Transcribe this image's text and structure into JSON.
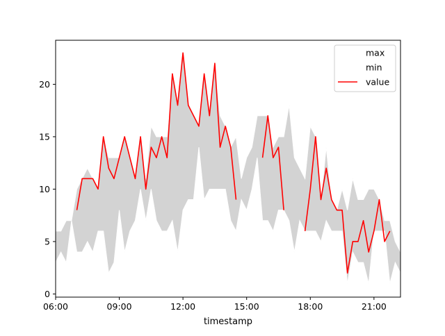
{
  "chart_data": {
    "type": "line",
    "title": "",
    "xlabel": "timestamp",
    "ylabel": "",
    "x_unit": "time of day (hours)",
    "xlim": [
      6,
      22.25
    ],
    "ylim": [
      -0.3,
      24.2
    ],
    "x_ticks": [
      {
        "value": 6,
        "label": "06:00"
      },
      {
        "value": 9,
        "label": "09:00"
      },
      {
        "value": 12,
        "label": "12:00"
      },
      {
        "value": 15,
        "label": "15:00"
      },
      {
        "value": 18,
        "label": "18:00"
      },
      {
        "value": 21,
        "label": "21:00"
      }
    ],
    "y_ticks": [
      0,
      5,
      10,
      15,
      20
    ],
    "grid": false,
    "legend": {
      "position": "top-right",
      "entries": [
        {
          "label": "max",
          "color": "#ffffff"
        },
        {
          "label": "min",
          "color": "#ffffff"
        },
        {
          "label": "value",
          "color": "#ff0000"
        }
      ]
    },
    "band": {
      "fill": "#d3d3d3",
      "max": [
        [
          6,
          6
        ],
        [
          6.25,
          6
        ],
        [
          6.5,
          7
        ],
        [
          6.75,
          7
        ],
        [
          7,
          10
        ],
        [
          7.25,
          11
        ],
        [
          7.5,
          12
        ],
        [
          7.75,
          11
        ],
        [
          8,
          10
        ],
        [
          8.25,
          15
        ],
        [
          8.5,
          13
        ],
        [
          8.75,
          13
        ],
        [
          9,
          13
        ],
        [
          9.25,
          15
        ],
        [
          9.5,
          13
        ],
        [
          9.75,
          11
        ],
        [
          10,
          15
        ],
        [
          10.25,
          11
        ],
        [
          10.5,
          16
        ],
        [
          10.75,
          15
        ],
        [
          11,
          15
        ],
        [
          11.25,
          15
        ],
        [
          11.5,
          21
        ],
        [
          11.75,
          18
        ],
        [
          12,
          23
        ],
        [
          12.25,
          18
        ],
        [
          12.5,
          17
        ],
        [
          12.75,
          16
        ],
        [
          13,
          21
        ],
        [
          13.25,
          17
        ],
        [
          13.5,
          22
        ],
        [
          13.75,
          17
        ],
        [
          14,
          16
        ],
        [
          14.25,
          14
        ],
        [
          14.5,
          15
        ],
        [
          14.75,
          11
        ],
        [
          15,
          13
        ],
        [
          15.25,
          14
        ],
        [
          15.5,
          17
        ],
        [
          15.75,
          17
        ],
        [
          16,
          17
        ],
        [
          16.25,
          14
        ],
        [
          16.5,
          15
        ],
        [
          16.75,
          15
        ],
        [
          17,
          18
        ],
        [
          17.25,
          13
        ],
        [
          17.5,
          12
        ],
        [
          17.75,
          11
        ],
        [
          18,
          16
        ],
        [
          18.25,
          15
        ],
        [
          18.5,
          9
        ],
        [
          18.75,
          14
        ],
        [
          19,
          9
        ],
        [
          19.25,
          8
        ],
        [
          19.5,
          10
        ],
        [
          19.75,
          8
        ],
        [
          20,
          11
        ],
        [
          20.25,
          9
        ],
        [
          20.5,
          9
        ],
        [
          20.75,
          10
        ],
        [
          21,
          10
        ],
        [
          21.25,
          9
        ],
        [
          21.5,
          7
        ],
        [
          21.75,
          7
        ],
        [
          22,
          5
        ],
        [
          22.25,
          4
        ]
      ],
      "min": [
        [
          6,
          3
        ],
        [
          6.25,
          4
        ],
        [
          6.5,
          3
        ],
        [
          6.75,
          7
        ],
        [
          7,
          4
        ],
        [
          7.25,
          4
        ],
        [
          7.5,
          5
        ],
        [
          7.75,
          4
        ],
        [
          8,
          6
        ],
        [
          8.25,
          6
        ],
        [
          8.5,
          2
        ],
        [
          8.75,
          3
        ],
        [
          9,
          8
        ],
        [
          9.25,
          4
        ],
        [
          9.5,
          6
        ],
        [
          9.75,
          7
        ],
        [
          10,
          10
        ],
        [
          10.25,
          7
        ],
        [
          10.5,
          10
        ],
        [
          10.75,
          7
        ],
        [
          11,
          6
        ],
        [
          11.25,
          6
        ],
        [
          11.5,
          7
        ],
        [
          11.75,
          4
        ],
        [
          12,
          8
        ],
        [
          12.25,
          9
        ],
        [
          12.5,
          9
        ],
        [
          12.75,
          14
        ],
        [
          13,
          9
        ],
        [
          13.25,
          10
        ],
        [
          13.5,
          10
        ],
        [
          13.75,
          10
        ],
        [
          14,
          10
        ],
        [
          14.25,
          7
        ],
        [
          14.5,
          6
        ],
        [
          14.75,
          9
        ],
        [
          15,
          8
        ],
        [
          15.25,
          10
        ],
        [
          15.5,
          13
        ],
        [
          15.75,
          7
        ],
        [
          16,
          7
        ],
        [
          16.25,
          6
        ],
        [
          16.5,
          8
        ],
        [
          16.75,
          8
        ],
        [
          17,
          7
        ],
        [
          17.25,
          4
        ],
        [
          17.5,
          7
        ],
        [
          17.75,
          6
        ],
        [
          18,
          6
        ],
        [
          18.25,
          6
        ],
        [
          18.5,
          5
        ],
        [
          18.75,
          7
        ],
        [
          19,
          6
        ],
        [
          19.25,
          6
        ],
        [
          19.5,
          6
        ],
        [
          19.75,
          1
        ],
        [
          20,
          4
        ],
        [
          20.25,
          3
        ],
        [
          20.5,
          3
        ],
        [
          20.75,
          1
        ],
        [
          21,
          6
        ],
        [
          21.25,
          6
        ],
        [
          21.5,
          6
        ],
        [
          21.75,
          1
        ],
        [
          22,
          3
        ],
        [
          22.25,
          2
        ]
      ]
    },
    "series": [
      {
        "name": "value",
        "color": "#ff0000",
        "segments": [
          [
            [
              7,
              8
            ],
            [
              7.25,
              11
            ],
            [
              7.5,
              11
            ],
            [
              7.75,
              11
            ],
            [
              8,
              10
            ],
            [
              8.25,
              15
            ],
            [
              8.5,
              12
            ],
            [
              8.75,
              11
            ],
            [
              9,
              13
            ],
            [
              9.25,
              15
            ],
            [
              9.5,
              13
            ],
            [
              9.75,
              11
            ],
            [
              10,
              15
            ],
            [
              10.25,
              10
            ],
            [
              10.5,
              14
            ],
            [
              10.75,
              13
            ],
            [
              11,
              15
            ],
            [
              11.25,
              13
            ],
            [
              11.5,
              21
            ],
            [
              11.75,
              18
            ],
            [
              12,
              23
            ],
            [
              12.25,
              18
            ],
            [
              12.5,
              17
            ],
            [
              12.75,
              16
            ],
            [
              13,
              21
            ],
            [
              13.25,
              17
            ],
            [
              13.5,
              22
            ],
            [
              13.75,
              14
            ],
            [
              14,
              16
            ],
            [
              14.25,
              14
            ],
            [
              14.5,
              9
            ]
          ],
          [
            [
              15.75,
              13
            ],
            [
              16,
              17
            ],
            [
              16.25,
              13
            ],
            [
              16.5,
              14
            ],
            [
              16.75,
              8
            ]
          ],
          [
            [
              17.75,
              6
            ],
            [
              18,
              10
            ],
            [
              18.25,
              15
            ],
            [
              18.5,
              9
            ],
            [
              18.75,
              12
            ],
            [
              19,
              9
            ],
            [
              19.25,
              8
            ],
            [
              19.5,
              8
            ],
            [
              19.75,
              2
            ],
            [
              20,
              5
            ],
            [
              20.25,
              5
            ],
            [
              20.5,
              7
            ],
            [
              20.75,
              4
            ],
            [
              21,
              6
            ],
            [
              21.25,
              9
            ],
            [
              21.5,
              5
            ],
            [
              21.75,
              6
            ]
          ]
        ]
      }
    ]
  }
}
